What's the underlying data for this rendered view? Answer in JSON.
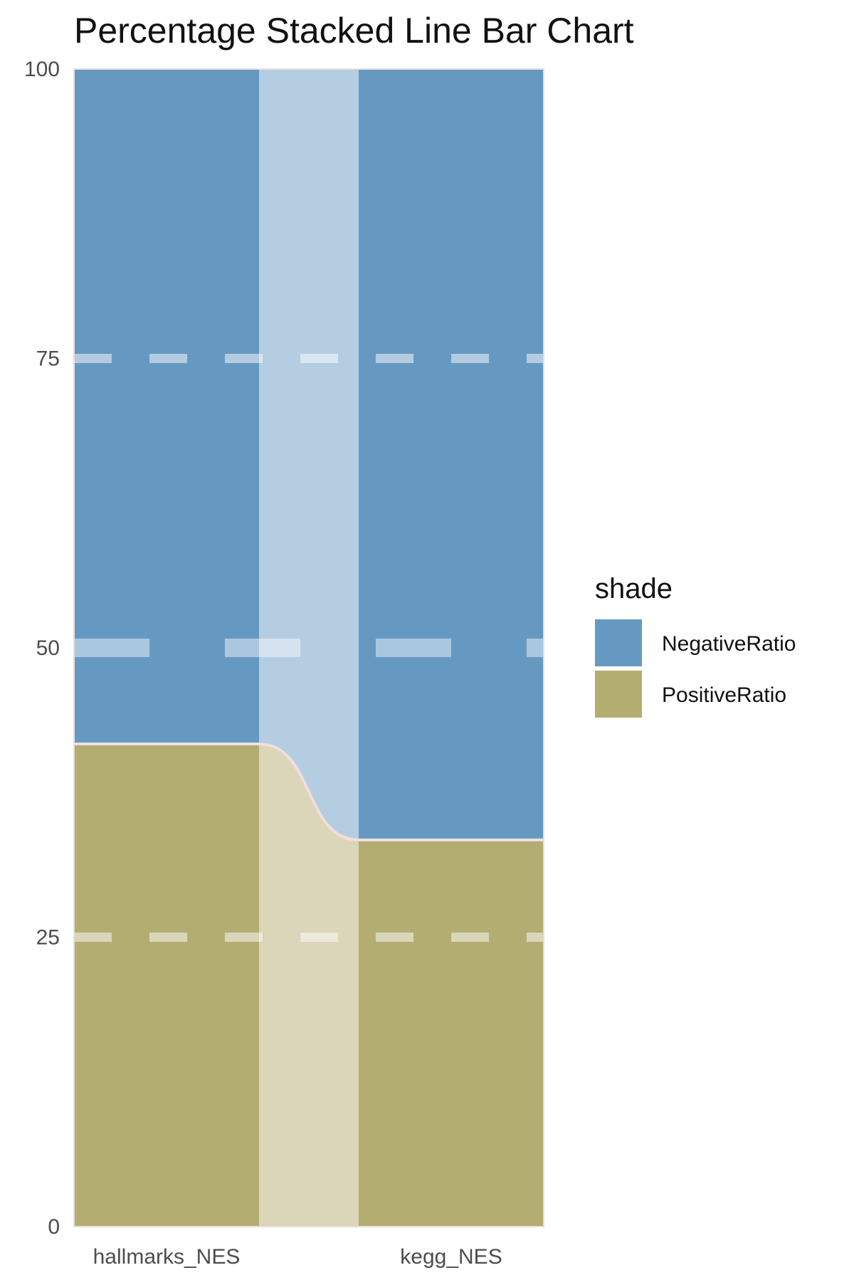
{
  "chart_data": {
    "type": "bar",
    "subtype": "percentage-stacked-with-connecting-band",
    "title": "Percentage Stacked Line Bar Chart",
    "xlabel": "",
    "ylabel": "",
    "categories": [
      "hallmarks_NES",
      "kegg_NES"
    ],
    "series": [
      {
        "name": "PositiveRatio",
        "values": [
          41.7,
          33.4
        ],
        "color": "#b3ad72"
      },
      {
        "name": "NegativeRatio",
        "values": [
          58.3,
          66.6
        ],
        "color": "#6699c2"
      }
    ],
    "ylim": [
      0,
      100
    ],
    "yticks": [
      "0",
      "25",
      "50",
      "75",
      "100"
    ],
    "grid": "dashed-horizontal",
    "legend": {
      "title": "shade",
      "position": "right",
      "entries": [
        "NegativeRatio",
        "PositiveRatio"
      ]
    },
    "colors": {
      "band_negative": "#b4cde1",
      "band_positive": "#dbd5b9",
      "boundary_line": "#f2dede",
      "grid": "#ffffff",
      "axis_text": "#4d4d4d"
    }
  }
}
